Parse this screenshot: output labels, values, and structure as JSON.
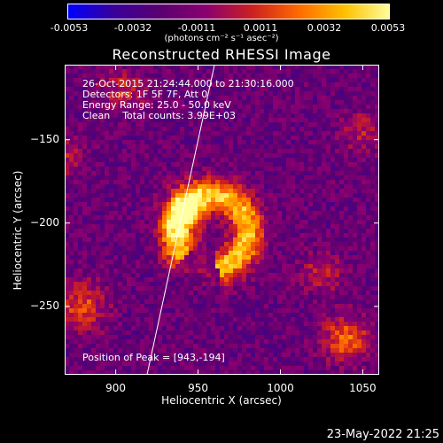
{
  "colorbar": {
    "tick_labels": [
      "-0.0053",
      "-0.0032",
      "-0.0011",
      "0.0011",
      "0.0032",
      "0.0053"
    ],
    "unit_label": "(photons cm⁻² s⁻¹ asec⁻²)",
    "colormap": [
      "#0000ff",
      "#3a0099",
      "#5a0070",
      "#8b0070",
      "#cc2020",
      "#ff6a00",
      "#ffc000",
      "#ffffa0"
    ]
  },
  "chart_data": {
    "type": "heatmap",
    "title": "Reconstructed RHESSI Image",
    "xlabel": "Heliocentric X (arcsec)",
    "ylabel": "Heliocentric Y (arcsec)",
    "xlim": [
      869,
      1060
    ],
    "ylim": [
      -291,
      -105
    ],
    "x_ticks": [
      900,
      950,
      1000,
      1050
    ],
    "y_ticks": [
      -150,
      -200,
      -250
    ],
    "value_range": [
      -0.0053,
      0.0053
    ],
    "peak": [
      943,
      -194
    ],
    "limb_line": [
      [
        919,
        -291
      ],
      [
        960,
        -105
      ]
    ]
  },
  "info": {
    "time_line": "26-Oct-2015 21:24:44.000 to 21:30:16.000",
    "detectors_line": "Detectors: 1F 5F 7F, Att 0",
    "energy_line": "Energy Range: 25.0 - 50.0 keV",
    "clean_line": "Clean    Total counts: 3.99E+03",
    "peak_line": "Position of Peak = [943,-194]"
  },
  "timestamp": "23-May-2022 21:25"
}
